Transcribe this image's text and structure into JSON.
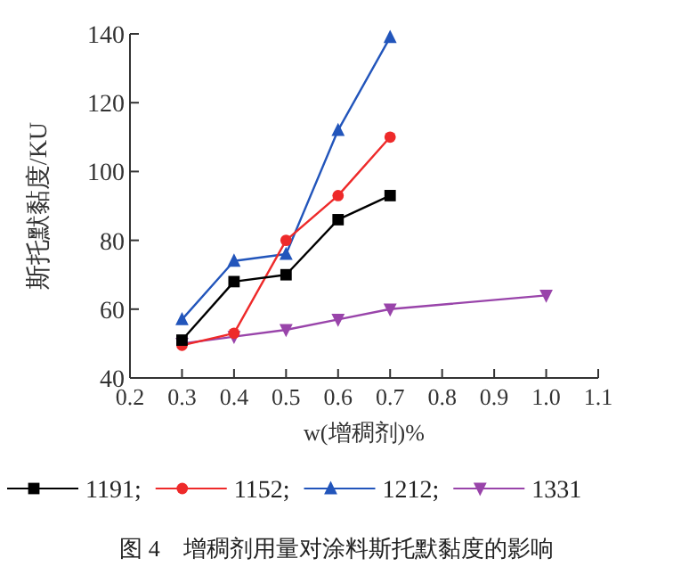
{
  "chart_data": {
    "type": "line",
    "title": "图 4　增稠剂用量对涂料斯托默黏度的影响",
    "xlabel": "w(增稠剂)%",
    "ylabel": "斯托默黏度/KU",
    "xlim": [
      0.2,
      1.1
    ],
    "xticks": [
      0.2,
      0.3,
      0.4,
      0.5,
      0.6,
      0.7,
      0.8,
      0.9,
      {
        "value": 1,
        "label": "1.0"
      },
      1.1
    ],
    "ylim": [
      40,
      140
    ],
    "yticks": [
      40,
      60,
      80,
      100,
      120,
      140
    ],
    "grid": false,
    "legend": "bottom",
    "line_style": "solid",
    "series": [
      {
        "name": "1191;",
        "color": "#000000",
        "marker": "square",
        "x": [
          0.3,
          0.4,
          0.5,
          0.6,
          0.7
        ],
        "values": [
          51,
          68,
          70,
          86,
          93
        ]
      },
      {
        "name": "1152;",
        "color": "#ee2a2a",
        "marker": "circle",
        "x": [
          0.3,
          0.4,
          0.5,
          0.6,
          0.7
        ],
        "values": [
          49.5,
          53,
          80,
          93,
          110
        ]
      },
      {
        "name": "1212;",
        "color": "#2255bb",
        "marker": "triangle",
        "x": [
          0.3,
          0.4,
          0.5,
          0.6,
          0.7
        ],
        "values": [
          57,
          74,
          76,
          112,
          139
        ]
      },
      {
        "name": "1331",
        "color": "#9944aa",
        "marker": "triangle-down",
        "x": [
          0.3,
          0.4,
          0.5,
          0.6,
          0.7,
          1.0
        ],
        "values": [
          50,
          52,
          54,
          57,
          60,
          64
        ]
      }
    ]
  }
}
